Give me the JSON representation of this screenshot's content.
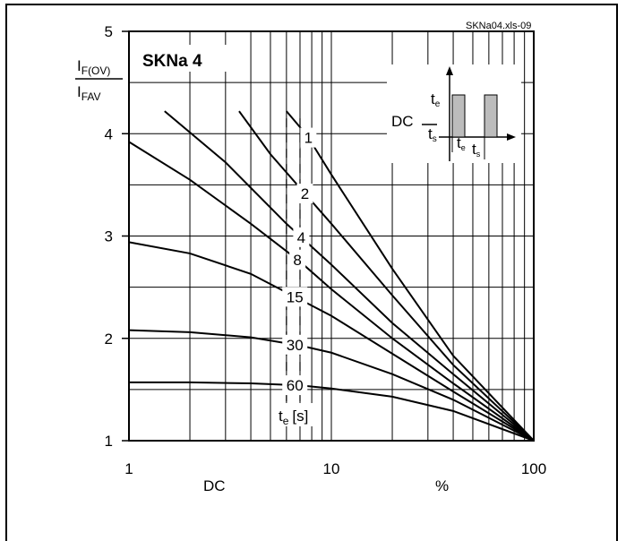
{
  "file_tag": "SKNa04.xls-09",
  "chart_data": {
    "type": "line",
    "title": "SKNa 4",
    "xscale": "log",
    "xlim": [
      1,
      100
    ],
    "ylim": [
      1,
      5
    ],
    "x_ticks": [
      "1",
      "10",
      "100"
    ],
    "y_ticks": [
      "1",
      "2",
      "3",
      "4",
      "5"
    ],
    "xlabel": "DC",
    "xunit": "%",
    "ylabel_num_main": "I",
    "ylabel_num_sub": "F(OV)",
    "ylabel_den_main": "I",
    "ylabel_den_sub": "FAV",
    "grid": true,
    "param_label_main": "t",
    "param_label_sub": "e",
    "param_label_unit": "[s]",
    "series": [
      {
        "name": "1",
        "x": [
          6.0,
          7.6,
          10,
          20,
          40,
          100
        ],
        "y": [
          4.22,
          3.98,
          3.6,
          2.68,
          1.83,
          1.0
        ]
      },
      {
        "name": "2",
        "x": [
          3.5,
          5.0,
          10,
          20,
          40,
          100
        ],
        "y": [
          4.22,
          3.8,
          3.12,
          2.42,
          1.74,
          1.0
        ]
      },
      {
        "name": "4",
        "x": [
          1.5,
          3.0,
          6.0,
          10,
          20,
          40,
          100
        ],
        "y": [
          4.22,
          3.72,
          3.12,
          2.72,
          2.15,
          1.65,
          1.0
        ]
      },
      {
        "name": "8",
        "x": [
          1,
          2,
          4,
          7,
          10,
          20,
          40,
          100
        ],
        "y": [
          3.92,
          3.55,
          3.12,
          2.75,
          2.48,
          2.0,
          1.56,
          1.0
        ]
      },
      {
        "name": "15",
        "x": [
          1,
          2,
          4,
          7,
          10,
          20,
          40,
          100
        ],
        "y": [
          2.94,
          2.83,
          2.63,
          2.38,
          2.22,
          1.85,
          1.48,
          1.0
        ]
      },
      {
        "name": "30",
        "x": [
          1,
          2,
          4,
          7,
          10,
          20,
          40,
          100
        ],
        "y": [
          2.08,
          2.06,
          2.01,
          1.93,
          1.86,
          1.65,
          1.4,
          1.0
        ]
      },
      {
        "name": "60",
        "x": [
          1,
          2,
          4,
          7,
          10,
          20,
          40,
          100
        ],
        "y": [
          1.57,
          1.57,
          1.56,
          1.54,
          1.51,
          1.43,
          1.29,
          1.0
        ]
      }
    ]
  },
  "inset": {
    "te": "t",
    "te_sub": "e",
    "ts": "t",
    "ts_sub": "s",
    "dc": "DC"
  }
}
